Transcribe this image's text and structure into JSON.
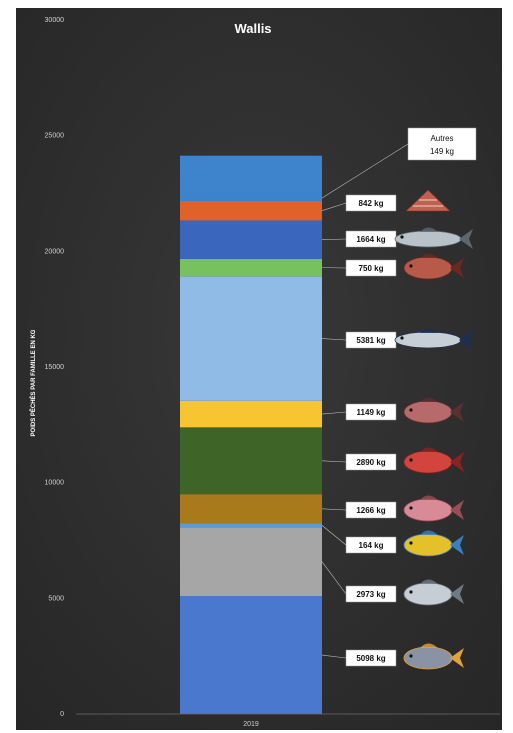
{
  "chart_data": {
    "type": "bar",
    "stacked": true,
    "title": "Wallis",
    "ylabel": "POIDS PÊCHÉS PAR FAMILLE EN KG",
    "categories": [
      "2019"
    ],
    "ylim": [
      0,
      30000
    ],
    "yticks": [
      0,
      5000,
      10000,
      15000,
      20000,
      25000,
      30000
    ],
    "grid": false,
    "background": "#2f2f2f",
    "series": [
      {
        "label": "5098 kg",
        "value": 5098,
        "color": "#4a78cf",
        "icon": "surgeonfish-icon"
      },
      {
        "label": "2973 kg",
        "value": 2973,
        "color": "#a6a6a6",
        "icon": "trevally-icon"
      },
      {
        "label": "164 kg",
        "value": 164,
        "color": "#5b9bd5",
        "icon": "mahi-mahi-icon"
      },
      {
        "label": "1266 kg",
        "value": 1266,
        "color": "#a87a1c",
        "icon": "pink-snapper-icon"
      },
      {
        "label": "2890 kg",
        "value": 2890,
        "color": "#3f6427",
        "icon": "red-snapper-icon"
      },
      {
        "label": "1149 kg",
        "value": 1149,
        "color": "#f7c531",
        "icon": "emperor-fish-icon"
      },
      {
        "label": "5381 kg",
        "value": 5381,
        "color": "#8fbbe6",
        "icon": "tuna-icon"
      },
      {
        "label": "750 kg",
        "value": 750,
        "color": "#77c25e",
        "icon": "grouper-icon"
      },
      {
        "label": "1664 kg",
        "value": 1664,
        "color": "#3a66be",
        "icon": "barracuda-icon"
      },
      {
        "label": "842 kg",
        "value": 842,
        "color": "#e0612a",
        "icon": "trochus-shell-icon"
      },
      {
        "label": "149 kg",
        "name": "Autres",
        "value": 149,
        "color": "#3d84cc",
        "icon": ""
      },
      {
        "label": "",
        "value": 1810,
        "color": "#3d84cc",
        "icon": ""
      }
    ]
  }
}
